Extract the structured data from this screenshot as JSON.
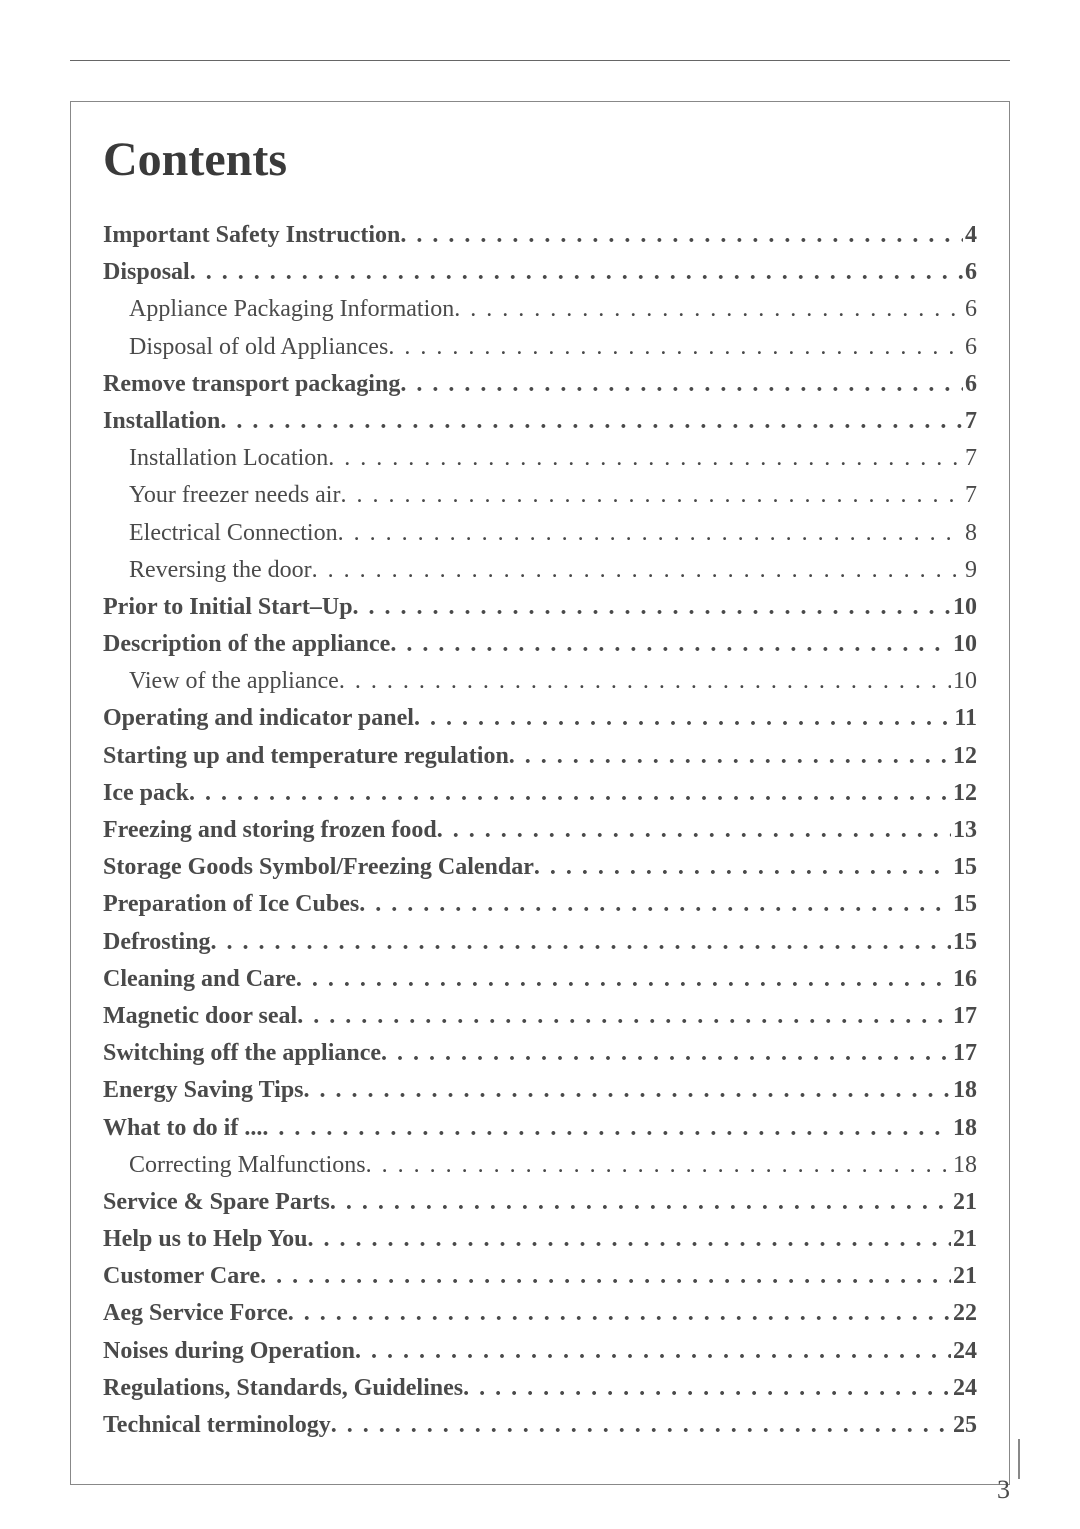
{
  "title": "Contents",
  "page_number": "3",
  "text_color": "#4a4a4a",
  "title_color": "#3a3a3a",
  "rule_color": "#888888",
  "background_color": "#ffffff",
  "title_fontsize": 48,
  "row_fontsize": 24,
  "entries": [
    {
      "label": "Important Safety Instruction",
      "page": "4",
      "level": 0
    },
    {
      "label": "Disposal",
      "page": "6",
      "level": 0
    },
    {
      "label": "Appliance Packaging Information",
      "page": "6",
      "level": 1
    },
    {
      "label": "Disposal of old Appliances",
      "page": "6",
      "level": 1
    },
    {
      "label": "Remove transport packaging",
      "page": "6",
      "level": 0
    },
    {
      "label": "Installation",
      "page": "7",
      "level": 0
    },
    {
      "label": "Installation Location",
      "page": "7",
      "level": 1
    },
    {
      "label": "Your freezer needs air",
      "page": "7",
      "level": 1
    },
    {
      "label": "Electrical Connection",
      "page": "8",
      "level": 1
    },
    {
      "label": "Reversing the door",
      "page": "9",
      "level": 1
    },
    {
      "label": "Prior to Initial Start–Up",
      "page": "10",
      "level": 0
    },
    {
      "label": "Description of the appliance",
      "page": "10",
      "level": 0
    },
    {
      "label": "View of the appliance",
      "page": "10",
      "level": 1
    },
    {
      "label": "Operating and indicator panel",
      "page": "11",
      "level": 0
    },
    {
      "label": "Starting up and temperature regulation",
      "page": "12",
      "level": 0
    },
    {
      "label": "Ice pack",
      "page": "12",
      "level": 0
    },
    {
      "label": "Freezing and storing frozen food",
      "page": "13",
      "level": 0
    },
    {
      "label": "Storage Goods Symbol/Freezing Calendar",
      "page": "15",
      "level": 0
    },
    {
      "label": "Preparation of Ice Cubes",
      "page": "15",
      "level": 0
    },
    {
      "label": "Defrosting",
      "page": "15",
      "level": 0
    },
    {
      "label": "Cleaning and Care",
      "page": "16",
      "level": 0
    },
    {
      "label": "Magnetic door seal",
      "page": "17",
      "level": 0
    },
    {
      "label": "Switching off the appliance",
      "page": "17",
      "level": 0
    },
    {
      "label": "Energy Saving Tips",
      "page": "18",
      "level": 0
    },
    {
      "label": "What to do if ...",
      "page": "18",
      "level": 0
    },
    {
      "label": "Correcting Malfunctions",
      "page": "18",
      "level": 1
    },
    {
      "label": "Service & Spare Parts",
      "page": "21",
      "level": 0
    },
    {
      "label": "Help us to Help You",
      "page": "21",
      "level": 0
    },
    {
      "label": "Customer Care",
      "page": "21",
      "level": 0
    },
    {
      "label": "Aeg Service Force",
      "page": "22",
      "level": 0
    },
    {
      "label": "Noises during Operation",
      "page": "24",
      "level": 0
    },
    {
      "label": "Regulations, Standards, Guidelines",
      "page": "24",
      "level": 0
    },
    {
      "label": "Technical terminology",
      "page": "25",
      "level": 0
    }
  ]
}
